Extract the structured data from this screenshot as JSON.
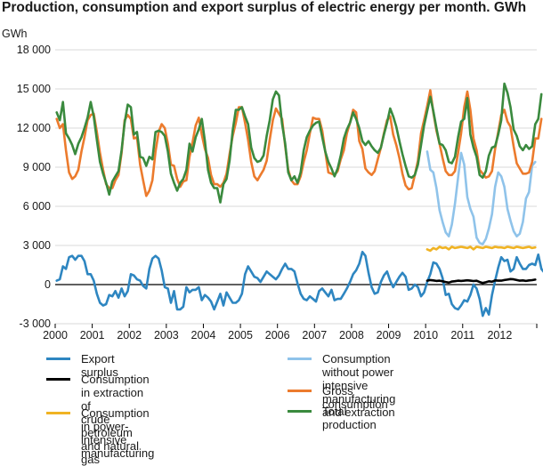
{
  "chart_data": {
    "type": "line",
    "title": "Production, consumption and export surplus of electric energy per month. GWh",
    "ylabel": "GWh",
    "xlabel": "",
    "ylim": [
      -3000,
      18000
    ],
    "yticks": [
      -3000,
      0,
      3000,
      6000,
      9000,
      12000,
      15000,
      18000
    ],
    "ytick_labels": [
      "-3 000",
      "0",
      "3 000",
      "6 000",
      "9 000",
      "12 000",
      "15 000",
      "18 000"
    ],
    "xlim": [
      2000,
      2013
    ],
    "xticks": [
      2000,
      2001,
      2002,
      2003,
      2004,
      2005,
      2006,
      2007,
      2008,
      2009,
      2010,
      2011,
      2012
    ],
    "xtick_labels": [
      "2000",
      "2001",
      "2002",
      "2003",
      "2004",
      "2005",
      "2006",
      "2007",
      "2008",
      "2009",
      "2010",
      "2011",
      "2012"
    ],
    "grid": "horizontal",
    "legend_position": "bottom",
    "series": [
      {
        "name": "Export surplus",
        "color": "#2e86c1",
        "start": 2000,
        "values": [
          300,
          400,
          1400,
          1200,
          2100,
          2200,
          1900,
          2200,
          2200,
          1800,
          800,
          800,
          300,
          -700,
          -1400,
          -1600,
          -1500,
          -800,
          -900,
          -500,
          -1000,
          -300,
          -900,
          -500,
          800,
          700,
          400,
          300,
          -100,
          -300,
          1200,
          2000,
          2200,
          2000,
          1100,
          -200,
          -300,
          -1400,
          -500,
          -1900,
          -1900,
          -1700,
          -200,
          -600,
          -400,
          -400,
          -200,
          -1200,
          -800,
          -1000,
          -1300,
          -1900,
          -1300,
          -700,
          -1600,
          -600,
          -1000,
          -1400,
          -1400,
          -1200,
          -700,
          800,
          1400,
          1000,
          600,
          500,
          200,
          600,
          1000,
          800,
          600,
          400,
          700,
          1200,
          1600,
          1200,
          1200,
          1000,
          100,
          -700,
          -1100,
          -1200,
          -900,
          -1100,
          -1300,
          -500,
          -300,
          -600,
          -900,
          -400,
          -1200,
          -1100,
          -1100,
          -700,
          -300,
          200,
          800,
          1100,
          1600,
          2500,
          2200,
          900,
          -200,
          -700,
          -600,
          200,
          700,
          1000,
          300,
          -200,
          200,
          600,
          900,
          600,
          -400,
          -300,
          0,
          -200,
          -900,
          -600,
          200,
          800,
          1700,
          1600,
          1200,
          500,
          -800,
          -700,
          -1500,
          -1800,
          -1900,
          -1600,
          -1200,
          -1300,
          -800,
          0,
          -300,
          -1100,
          -2400,
          -1800,
          -2300,
          -800,
          300,
          1300,
          2100,
          1800,
          1900,
          1000,
          1200,
          2100,
          1600,
          1200,
          1200,
          1500,
          1600,
          1500,
          2300,
          1200,
          900,
          700,
          200,
          -600
        ]
      },
      {
        "name": "Consumption in extraction of crude petroleum and natural gas",
        "color": "#000000",
        "start": 2010,
        "values": [
          300,
          350,
          320,
          280,
          300,
          250,
          200,
          150,
          230,
          260,
          300,
          280,
          300,
          330,
          300,
          270,
          290,
          200,
          120,
          180,
          250,
          220,
          320,
          300,
          300,
          350,
          380,
          420,
          400,
          350,
          300,
          320,
          280,
          320,
          340,
          380
        ]
      },
      {
        "name": "Consumption in power-intensive manufacturing",
        "color": "#f0b323",
        "start": 2010,
        "values": [
          2700,
          2600,
          2800,
          2700,
          2900,
          2800,
          2850,
          2700,
          2900,
          2800,
          2850,
          2900,
          2850,
          2800,
          2900,
          2700,
          2900,
          2850,
          2800,
          2900,
          2850,
          2800,
          2900,
          2850,
          2850,
          2800,
          2900,
          2850,
          2800,
          2900,
          2850,
          2800,
          2850,
          2900,
          2800,
          2850
        ]
      },
      {
        "name": "Consumption without power intensive manufacturing and extraction",
        "color": "#8fc3ea",
        "start": 2010,
        "values": [
          10200,
          8800,
          8600,
          7400,
          5700,
          4800,
          4000,
          3700,
          4600,
          6200,
          8200,
          10100,
          9200,
          6700,
          5800,
          5200,
          3600,
          3200,
          3100,
          3500,
          4300,
          5400,
          7500,
          8600,
          8300,
          7500,
          5800,
          4900,
          4100,
          3700,
          3900,
          4800,
          6600,
          7100,
          9100,
          9400
        ]
      },
      {
        "name": "Gross consumption",
        "color": "#ec7b2d",
        "start": 2000,
        "values": [
          12700,
          12000,
          12300,
          10300,
          8600,
          8100,
          8300,
          8800,
          10200,
          11300,
          12600,
          13000,
          13100,
          11700,
          10100,
          8800,
          7700,
          7400,
          7400,
          8000,
          8400,
          10100,
          12600,
          13000,
          12700,
          11200,
          11300,
          9200,
          8000,
          6800,
          7200,
          8000,
          10200,
          11700,
          12300,
          12000,
          10800,
          9200,
          9100,
          8100,
          7500,
          7900,
          8000,
          9800,
          10900,
          12200,
          12800,
          11500,
          10400,
          9700,
          8400,
          7700,
          7700,
          7500,
          7800,
          8500,
          10000,
          11400,
          12400,
          13600,
          13600,
          12400,
          11100,
          9400,
          8300,
          8000,
          8400,
          8800,
          9500,
          11100,
          12600,
          13500,
          13100,
          12700,
          10600,
          8800,
          8000,
          7700,
          7700,
          8300,
          9400,
          10300,
          11600,
          12800,
          12700,
          12700,
          11800,
          10200,
          8600,
          8500,
          8400,
          8700,
          9600,
          10300,
          11600,
          12400,
          13400,
          13200,
          11000,
          10400,
          8900,
          8600,
          8400,
          8700,
          9600,
          10500,
          11600,
          12600,
          12900,
          11500,
          10700,
          9700,
          8500,
          7600,
          7300,
          7400,
          8400,
          9500,
          11600,
          12600,
          13700,
          14900,
          13200,
          11800,
          10800,
          9700,
          8700,
          8400,
          8400,
          8700,
          10100,
          11600,
          13600,
          14800,
          13400,
          11200,
          10300,
          8800,
          8500,
          8200,
          8300,
          8700,
          10400,
          11700,
          13000,
          13400,
          12500,
          12100,
          10600,
          9300,
          8900,
          8500,
          8500,
          8600,
          9400,
          11200,
          11200,
          12700
        ]
      },
      {
        "name": "Total production",
        "color": "#3a8a3e",
        "start": 2000,
        "values": [
          13200,
          12600,
          14000,
          11600,
          11200,
          10700,
          10000,
          10800,
          11300,
          12000,
          12800,
          14000,
          12900,
          11100,
          9400,
          8500,
          7800,
          6900,
          7900,
          8300,
          8700,
          10300,
          12400,
          13800,
          13600,
          11500,
          11700,
          9800,
          9700,
          9100,
          9800,
          9600,
          11700,
          11800,
          11700,
          11400,
          10200,
          8500,
          7800,
          7200,
          7800,
          8100,
          8800,
          10800,
          10200,
          11300,
          11900,
          12700,
          11000,
          8800,
          7800,
          7400,
          7400,
          6300,
          7700,
          8100,
          9500,
          11800,
          13400,
          13400,
          13600,
          12900,
          12300,
          10500,
          9700,
          9400,
          9500,
          9900,
          11400,
          12600,
          14200,
          14800,
          14500,
          12300,
          10800,
          8600,
          8000,
          8300,
          7800,
          8600,
          10300,
          11300,
          11800,
          12200,
          12400,
          12500,
          11300,
          10200,
          9400,
          8900,
          8300,
          8900,
          9900,
          11200,
          11900,
          12400,
          13200,
          12700,
          12000,
          11000,
          10700,
          11000,
          10600,
          10300,
          10100,
          10500,
          11500,
          12400,
          13500,
          12900,
          12100,
          11000,
          10000,
          9100,
          8300,
          8200,
          8400,
          9200,
          10700,
          12200,
          13300,
          14400,
          13300,
          12000,
          10800,
          10700,
          10300,
          9400,
          9300,
          9800,
          11300,
          12500,
          12700,
          14300,
          11500,
          10500,
          9800,
          8400,
          8200,
          8700,
          9900,
          10500,
          10600,
          11500,
          12600,
          15400,
          14700,
          13600,
          11900,
          11400,
          10600,
          10300,
          10700,
          10400,
          10600,
          12300,
          12700,
          14600
        ]
      }
    ],
    "legend": [
      {
        "key": "export",
        "label": "Export surplus",
        "color": "#2e86c1"
      },
      {
        "key": "extraction",
        "label": "Consumption in extraction of\ncrude petroleum and natural gas",
        "color": "#000000"
      },
      {
        "key": "power",
        "label": "Consumption in power-\nintensive manufacturing",
        "color": "#f0b323"
      },
      {
        "key": "without",
        "label": "Consumption without power\nintensive manufacturing and extraction",
        "color": "#8fc3ea"
      },
      {
        "key": "gross",
        "label": "Gross consumption",
        "color": "#ec7b2d"
      },
      {
        "key": "total",
        "label": "Total production",
        "color": "#3a8a3e"
      }
    ]
  }
}
